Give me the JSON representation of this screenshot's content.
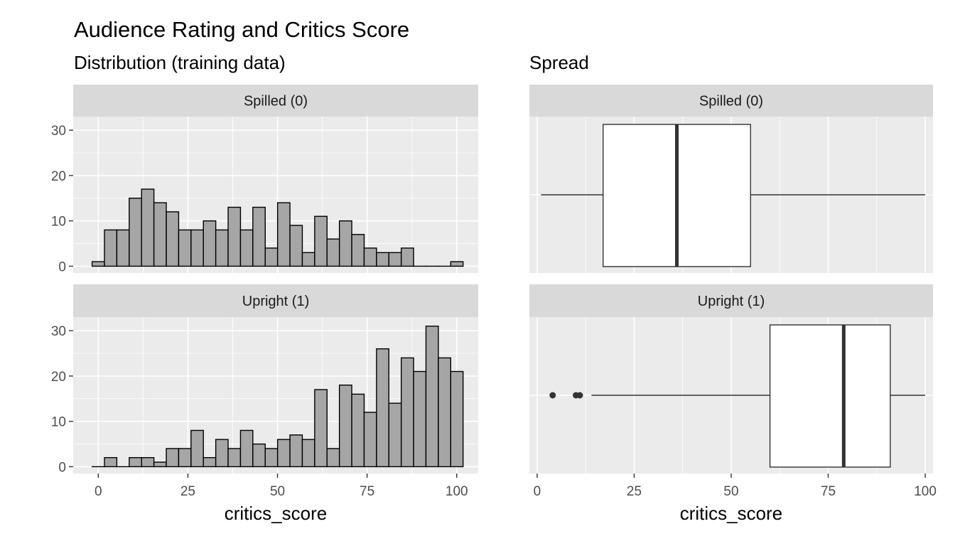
{
  "title": "Audience Rating and Critics Score",
  "subtitles": {
    "left": "Distribution (training data)",
    "right": "Spread"
  },
  "chart_data": [
    {
      "type": "bar",
      "subtype": "histogram",
      "subtitle": "Distribution (training data)",
      "xlabel": "critics_score",
      "ylabel": "",
      "xlim": [
        -7,
        106
      ],
      "ylim": [
        -1.5,
        33
      ],
      "xticks": [
        0,
        25,
        50,
        75,
        100
      ],
      "yticks": [
        0,
        10,
        20,
        30
      ],
      "bin_width": 3.45,
      "fill_color": "#a6a6a6",
      "panel_background": "#ebebeb",
      "strip_background": "#d9d9d9",
      "grid": true,
      "panels": [
        {
          "label": "Spilled (0)",
          "bin_centers": [
            0,
            3.45,
            6.9,
            10.35,
            13.8,
            17.25,
            20.7,
            24.15,
            27.6,
            31.05,
            34.5,
            37.95,
            41.4,
            44.85,
            48.3,
            51.75,
            55.2,
            58.65,
            62.1,
            65.55,
            69,
            72.45,
            75.9,
            79.35,
            82.8,
            86.25,
            89.7,
            93.15,
            96.6,
            100.05
          ],
          "counts": [
            1,
            8,
            8,
            15,
            17,
            14,
            12,
            8,
            8,
            10,
            8,
            13,
            8,
            13,
            4,
            14,
            9,
            3,
            11,
            6,
            10,
            7,
            4,
            3,
            3,
            4,
            0,
            0,
            0,
            1
          ]
        },
        {
          "label": "Upright (1)",
          "bin_centers": [
            0,
            3.45,
            6.9,
            10.35,
            13.8,
            17.25,
            20.7,
            24.15,
            27.6,
            31.05,
            34.5,
            37.95,
            41.4,
            44.85,
            48.3,
            51.75,
            55.2,
            58.65,
            62.1,
            65.55,
            69,
            72.45,
            75.9,
            79.35,
            82.8,
            86.25,
            89.7,
            93.15,
            96.6,
            100.05
          ],
          "counts": [
            0,
            2,
            0,
            2,
            2,
            1,
            4,
            4,
            8,
            2,
            6,
            4,
            8,
            5,
            4,
            6,
            7,
            6,
            17,
            4,
            18,
            16,
            12,
            26,
            14,
            24,
            21,
            31,
            24,
            21
          ]
        }
      ]
    },
    {
      "type": "box",
      "subtitle": "Spread",
      "xlabel": "critics_score",
      "xlim": [
        -2,
        102
      ],
      "xticks": [
        0,
        25,
        50,
        75,
        100
      ],
      "box_fill": "#ffffff",
      "grid": true,
      "panels": [
        {
          "label": "Spilled (0)",
          "min": 1,
          "q1": 17,
          "median": 36,
          "q3": 55,
          "max": 100,
          "outliers": []
        },
        {
          "label": "Upright (1)",
          "min": 14,
          "q1": 60,
          "median": 79,
          "q3": 91,
          "max": 100,
          "outliers": [
            4,
            10,
            11
          ]
        }
      ]
    }
  ]
}
